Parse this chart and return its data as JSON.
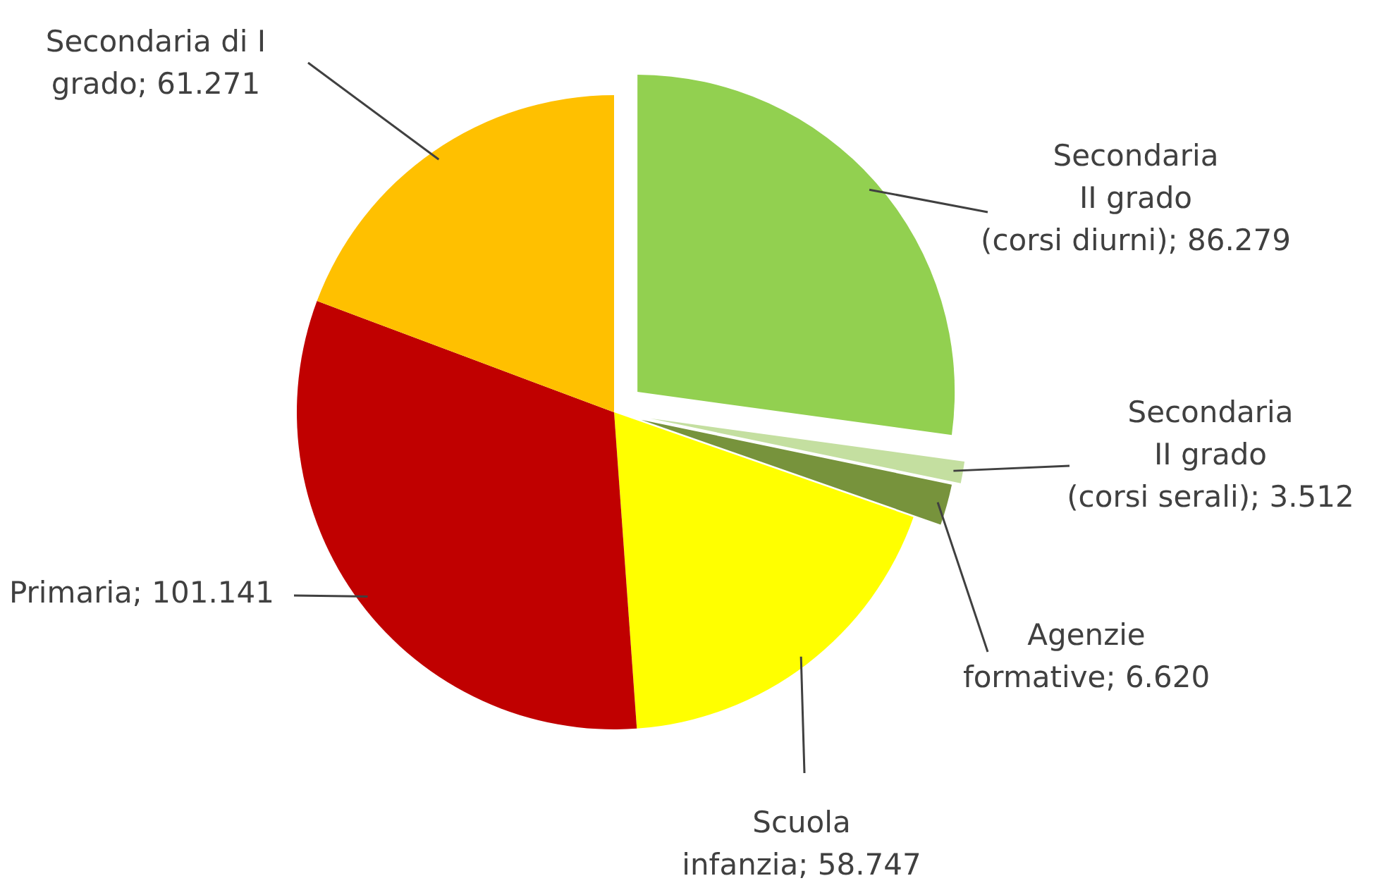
{
  "chart_data": {
    "type": "pie",
    "categories": [
      "Secondaria II grado (corsi diurni)",
      "Secondaria II grado (corsi serali)",
      "Agenzie formative",
      "Scuola infanzia",
      "Primaria",
      "Secondaria di I grado"
    ],
    "values": [
      86279,
      3512,
      6620,
      58747,
      101141,
      61271
    ],
    "colors": [
      "#92d050",
      "#c4dfa0",
      "#77933c",
      "#ffff00",
      "#c00000",
      "#ffc000"
    ],
    "value_labels": [
      "86.279",
      "3.512",
      "6.620",
      "58.747",
      "101.141",
      "61.271"
    ]
  }
}
